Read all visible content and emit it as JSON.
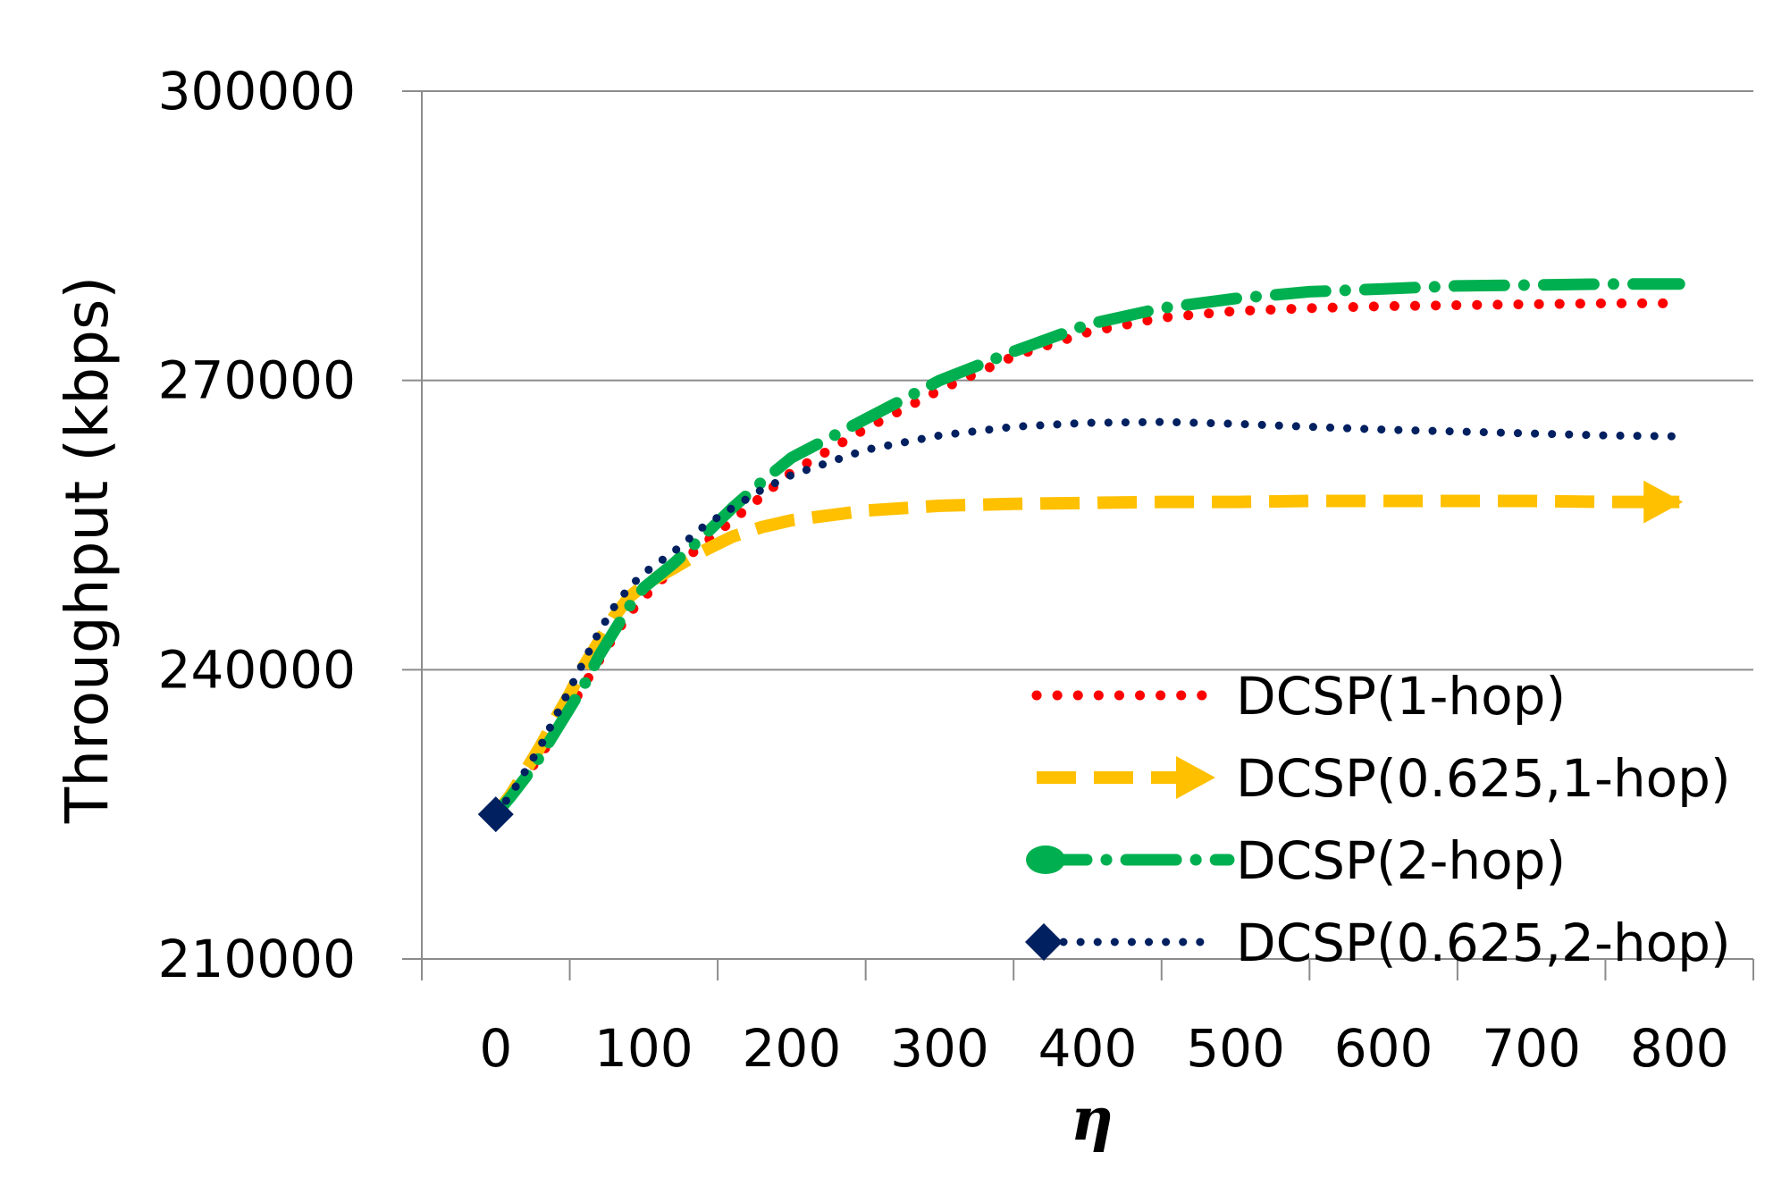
{
  "chart_data": {
    "type": "line",
    "title": "",
    "xlabel": "η",
    "ylabel": "Throughput (kbps)",
    "ylim": [
      210000,
      300000
    ],
    "yticks": [
      210000,
      240000,
      270000,
      300000
    ],
    "ytick_labels": [
      "210000",
      "240000",
      "270000",
      "300000"
    ],
    "xlim": [
      -50,
      850
    ],
    "xticks": [
      0,
      100,
      200,
      300,
      400,
      500,
      600,
      700,
      800
    ],
    "xtick_labels": [
      "0",
      "100",
      "200",
      "300",
      "400",
      "500",
      "600",
      "700",
      "800"
    ],
    "grid": "horizontal",
    "legend_position": "bottom-right",
    "x": [
      0,
      10,
      20,
      30,
      40,
      50,
      60,
      70,
      80,
      90,
      100,
      120,
      140,
      160,
      180,
      200,
      250,
      300,
      350,
      400,
      450,
      500,
      550,
      600,
      650,
      700,
      750,
      800
    ],
    "series": [
      {
        "name": "DCSP(1-hop)",
        "color": "#ff0000",
        "values": [
          225000,
          226800,
          229000,
          231000,
          233500,
          236000,
          238500,
          241000,
          243500,
          245800,
          247500,
          250500,
          253000,
          255500,
          258000,
          260500,
          265000,
          269000,
          272500,
          275000,
          276500,
          277200,
          277500,
          277700,
          277800,
          277900,
          278000,
          278000
        ]
      },
      {
        "name": "DCSP(0.625,1-hop)",
        "color": "#ffc000",
        "values": [
          225000,
          227000,
          229500,
          232000,
          234800,
          237500,
          240500,
          243000,
          245500,
          247500,
          248800,
          250500,
          252300,
          253800,
          254800,
          255500,
          256500,
          257000,
          257200,
          257300,
          257400,
          257400,
          257500,
          257500,
          257500,
          257500,
          257400,
          257400
        ]
      },
      {
        "name": "DCSP(2-hop)",
        "color": "#00b050",
        "values": [
          225000,
          226800,
          228800,
          231000,
          233500,
          236000,
          238500,
          241500,
          244000,
          246500,
          248500,
          251000,
          253800,
          256800,
          259500,
          262000,
          266000,
          270000,
          273000,
          275800,
          277500,
          278500,
          279200,
          279500,
          279800,
          279900,
          280000,
          280000
        ]
      },
      {
        "name": "DCSP(0.625,2-hop)",
        "color": "#002060",
        "values": [
          225000,
          227000,
          229500,
          232000,
          235000,
          238000,
          241000,
          244000,
          246500,
          248500,
          250000,
          252200,
          254800,
          256800,
          258700,
          260200,
          262800,
          264300,
          265200,
          265600,
          265700,
          265500,
          265200,
          264900,
          264700,
          264500,
          264300,
          264200
        ]
      }
    ]
  }
}
